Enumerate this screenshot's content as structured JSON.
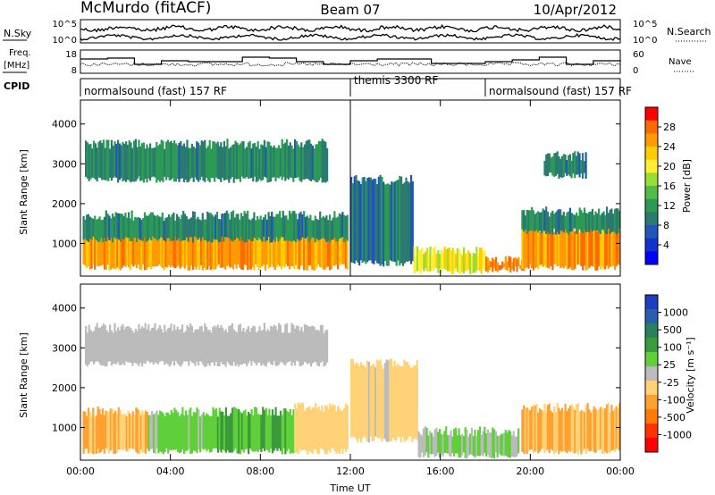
{
  "header": {
    "station": "McMurdo (fitACF)",
    "beam": "Beam 07",
    "date": "10/Apr/2012"
  },
  "noise_panel": {
    "left_label": "N.Sky",
    "right_label": "N.Search",
    "left_ticks": [
      "10^5",
      "10^0"
    ],
    "right_ticks": [
      "10^5",
      "10^0"
    ]
  },
  "freq_panel": {
    "left_label_1": "Freq.",
    "left_label_2": "[MHz]",
    "right_label": "Nave",
    "left_ticks": [
      "18",
      "8"
    ],
    "right_ticks": [
      "60",
      "0"
    ]
  },
  "cpid": {
    "label": "CPID",
    "segments": [
      {
        "text": "normalsound (fast) 157 RF",
        "start_hour": 0,
        "end_hour": 12
      },
      {
        "text": "themis 3300 RF",
        "start_hour": 12,
        "end_hour": 18
      },
      {
        "text": "normalsound (fast) 157 RF",
        "start_hour": 18,
        "end_hour": 24
      }
    ]
  },
  "power_colorbar": {
    "title": "Power [dB]",
    "ticks": [
      "28",
      "24",
      "20",
      "16",
      "12",
      "8",
      "4"
    ],
    "colors": [
      "#ff0000",
      "#ff6a00",
      "#ff9a00",
      "#ffcc00",
      "#ffee33",
      "#99dd33",
      "#55bb44",
      "#2a9a55",
      "#2a7a70",
      "#2255bb",
      "#1133cc",
      "#0000ff"
    ]
  },
  "velocity_colorbar": {
    "title": "Velocity [m s⁻¹]",
    "ticks": [
      "1000",
      "500",
      "100",
      "25",
      "-25",
      "-100",
      "-500",
      "-1000"
    ],
    "colors": [
      "#1b3fbf",
      "#2a5cb0",
      "#2a7f5e",
      "#3b9b3b",
      "#5fcf3a",
      "#bbbbbb",
      "#ffd278",
      "#ffa030",
      "#ff7a00",
      "#ff3300",
      "#ff0000"
    ]
  },
  "chart_data": {
    "type": "heatmap",
    "x_label": "Time UT",
    "x_ticks": [
      "00:00",
      "04:00",
      "08:00",
      "12:00",
      "16:00",
      "20:00",
      "00:00"
    ],
    "x_range_hours": [
      0,
      24
    ],
    "y_label": "Slant Range [km]",
    "y_ticks": [
      "1000",
      "2000",
      "3000",
      "4000"
    ],
    "y_range_km": [
      180,
      4600
    ],
    "panels": [
      {
        "name": "power",
        "quantity": "Power",
        "units": "dB",
        "colorbar_range": [
          0,
          32
        ],
        "features": [
          {
            "start_hour": 0.1,
            "end_hour": 11.9,
            "range_lo_km": 400,
            "range_hi_km": 1300,
            "level": 26
          },
          {
            "start_hour": 0.1,
            "end_hour": 11.9,
            "range_lo_km": 1100,
            "range_hi_km": 1700,
            "level": 10
          },
          {
            "start_hour": 0.2,
            "end_hour": 11.0,
            "range_lo_km": 2600,
            "range_hi_km": 3500,
            "level": 10
          },
          {
            "start_hour": 12.0,
            "end_hour": 14.8,
            "range_lo_km": 500,
            "range_hi_km": 2600,
            "level": 8
          },
          {
            "start_hour": 14.8,
            "end_hour": 18.0,
            "range_lo_km": 300,
            "range_hi_km": 800,
            "level": 20
          },
          {
            "start_hour": 18.0,
            "end_hour": 19.8,
            "range_lo_km": 350,
            "range_hi_km": 560,
            "level": 27
          },
          {
            "start_hour": 19.6,
            "end_hour": 24.0,
            "range_lo_km": 400,
            "range_hi_km": 1400,
            "level": 26
          },
          {
            "start_hour": 19.6,
            "end_hour": 24.0,
            "range_lo_km": 1300,
            "range_hi_km": 1800,
            "level": 10
          },
          {
            "start_hour": 20.6,
            "end_hour": 22.5,
            "range_lo_km": 2700,
            "range_hi_km": 3200,
            "level": 9
          }
        ]
      },
      {
        "name": "velocity",
        "quantity": "Velocity",
        "units": "m s^-1",
        "colorbar_range": [
          -1000,
          1000
        ],
        "features": [
          {
            "start_hour": 0.1,
            "end_hour": 3.0,
            "range_lo_km": 400,
            "range_hi_km": 1400,
            "velocity": -300
          },
          {
            "start_hour": 3.0,
            "end_hour": 6.0,
            "range_lo_km": 400,
            "range_hi_km": 1400,
            "velocity": 150
          },
          {
            "start_hour": 6.0,
            "end_hour": 9.5,
            "range_lo_km": 400,
            "range_hi_km": 1400,
            "velocity": 300
          },
          {
            "start_hour": 9.5,
            "end_hour": 11.9,
            "range_lo_km": 400,
            "range_hi_km": 1500,
            "velocity": -200
          },
          {
            "start_hour": 0.2,
            "end_hour": 11.0,
            "range_lo_km": 2600,
            "range_hi_km": 3500,
            "velocity": 0
          },
          {
            "start_hour": 12.0,
            "end_hour": 15.0,
            "range_lo_km": 700,
            "range_hi_km": 2600,
            "velocity": -150
          },
          {
            "start_hour": 15.0,
            "end_hour": 19.5,
            "range_lo_km": 300,
            "range_hi_km": 900,
            "velocity": 100
          },
          {
            "start_hour": 19.6,
            "end_hour": 24.0,
            "range_lo_km": 400,
            "range_hi_km": 1500,
            "velocity": -300
          }
        ]
      }
    ],
    "grid": false
  }
}
